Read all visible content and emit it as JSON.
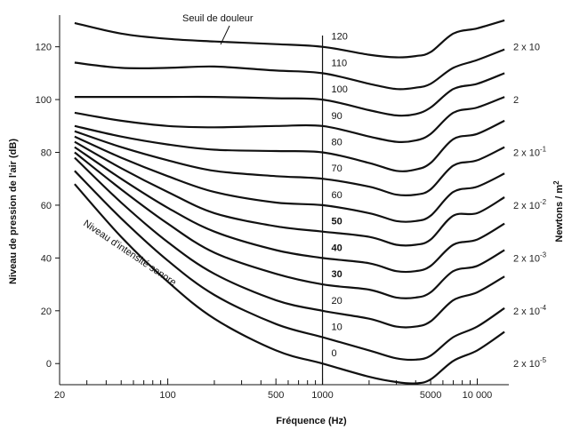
{
  "chart_data": {
    "type": "line",
    "title": "",
    "xlabel": "Fréquence (Hz)",
    "ylabel": "Niveau de pression de l'air (dB)",
    "ylabel_right": "Newtons / m²",
    "x_scale": "log",
    "xlim": [
      20,
      16000
    ],
    "ylim": [
      -8,
      132
    ],
    "x_ticks": [
      {
        "value": 20,
        "label": "20"
      },
      {
        "value": 100,
        "label": "100"
      },
      {
        "value": 500,
        "label": "500"
      },
      {
        "value": 1000,
        "label": "1000"
      },
      {
        "value": 5000,
        "label": "5000"
      },
      {
        "value": 10000,
        "label": "10 000"
      }
    ],
    "x_minor_ticks": [
      30,
      40,
      50,
      60,
      70,
      80,
      90,
      200,
      300,
      400,
      600,
      700,
      800,
      900,
      2000,
      3000,
      4000,
      6000,
      7000,
      8000,
      9000
    ],
    "y_ticks": [
      0,
      20,
      40,
      60,
      80,
      100,
      120
    ],
    "reference_line_x": 1000,
    "right_axis": [
      {
        "y": 120,
        "base": "2 x 10",
        "exp": ""
      },
      {
        "y": 100,
        "base": "2",
        "exp": ""
      },
      {
        "y": 80,
        "base": "2 x 10",
        "exp": "-1"
      },
      {
        "y": 60,
        "base": "2 x 10",
        "exp": "-2"
      },
      {
        "y": 40,
        "base": "2 x 10",
        "exp": "-3"
      },
      {
        "y": 20,
        "base": "2 x 10",
        "exp": "-4"
      },
      {
        "y": 0,
        "base": "2 x 10",
        "exp": "-5"
      }
    ],
    "annotations": {
      "pain_threshold": "Seuil de douleur",
      "intensity_level": "Niveau d'intensité sonore"
    },
    "series": [
      {
        "label": "120",
        "bold": false,
        "points": [
          [
            25,
            129
          ],
          [
            50,
            125
          ],
          [
            100,
            123
          ],
          [
            200,
            122
          ],
          [
            500,
            121
          ],
          [
            1000,
            120
          ],
          [
            2000,
            117
          ],
          [
            3000,
            116
          ],
          [
            4000,
            116.5
          ],
          [
            5000,
            118
          ],
          [
            7000,
            125
          ],
          [
            10000,
            127
          ],
          [
            15000,
            130
          ]
        ]
      },
      {
        "label": "110",
        "bold": false,
        "points": [
          [
            25,
            114
          ],
          [
            50,
            112
          ],
          [
            100,
            112
          ],
          [
            200,
            112.5
          ],
          [
            500,
            111
          ],
          [
            1000,
            110
          ],
          [
            2000,
            106
          ],
          [
            3000,
            104
          ],
          [
            4000,
            104.5
          ],
          [
            5000,
            106
          ],
          [
            7000,
            112
          ],
          [
            10000,
            115
          ],
          [
            15000,
            119
          ]
        ]
      },
      {
        "label": "100",
        "bold": false,
        "points": [
          [
            25,
            101
          ],
          [
            50,
            101
          ],
          [
            100,
            101
          ],
          [
            200,
            101
          ],
          [
            500,
            100.5
          ],
          [
            1000,
            100
          ],
          [
            2000,
            96
          ],
          [
            3000,
            94
          ],
          [
            4000,
            94.5
          ],
          [
            5000,
            97
          ],
          [
            7000,
            104
          ],
          [
            10000,
            106
          ],
          [
            15000,
            110
          ]
        ]
      },
      {
        "label": "90",
        "bold": false,
        "points": [
          [
            25,
            95
          ],
          [
            50,
            92
          ],
          [
            100,
            90
          ],
          [
            200,
            89.5
          ],
          [
            500,
            90
          ],
          [
            1000,
            90
          ],
          [
            2000,
            86
          ],
          [
            3000,
            84
          ],
          [
            4000,
            84.5
          ],
          [
            5000,
            87
          ],
          [
            7000,
            95
          ],
          [
            10000,
            97
          ],
          [
            15000,
            101
          ]
        ]
      },
      {
        "label": "80",
        "bold": false,
        "points": [
          [
            25,
            90
          ],
          [
            50,
            86
          ],
          [
            100,
            83
          ],
          [
            200,
            81
          ],
          [
            500,
            80.5
          ],
          [
            1000,
            80
          ],
          [
            2000,
            76
          ],
          [
            3000,
            73
          ],
          [
            4000,
            73.5
          ],
          [
            5000,
            76
          ],
          [
            7000,
            85
          ],
          [
            10000,
            87
          ],
          [
            15000,
            92
          ]
        ]
      },
      {
        "label": "70",
        "bold": false,
        "points": [
          [
            25,
            88
          ],
          [
            50,
            82
          ],
          [
            100,
            77
          ],
          [
            200,
            73
          ],
          [
            500,
            71
          ],
          [
            1000,
            70
          ],
          [
            2000,
            67
          ],
          [
            3000,
            64
          ],
          [
            4000,
            64
          ],
          [
            5000,
            66
          ],
          [
            7000,
            75
          ],
          [
            10000,
            77
          ],
          [
            15000,
            82
          ]
        ]
      },
      {
        "label": "60",
        "bold": false,
        "points": [
          [
            25,
            86
          ],
          [
            50,
            78
          ],
          [
            100,
            71
          ],
          [
            200,
            65
          ],
          [
            500,
            61
          ],
          [
            1000,
            60
          ],
          [
            2000,
            57
          ],
          [
            3000,
            54
          ],
          [
            4000,
            54
          ],
          [
            5000,
            56
          ],
          [
            7000,
            65
          ],
          [
            10000,
            67
          ],
          [
            15000,
            72
          ]
        ]
      },
      {
        "label": "50",
        "bold": true,
        "points": [
          [
            25,
            84
          ],
          [
            50,
            74
          ],
          [
            100,
            65
          ],
          [
            200,
            57
          ],
          [
            500,
            52
          ],
          [
            1000,
            50
          ],
          [
            2000,
            48
          ],
          [
            3000,
            45
          ],
          [
            4000,
            45
          ],
          [
            5000,
            47
          ],
          [
            7000,
            56
          ],
          [
            10000,
            57
          ],
          [
            15000,
            63
          ]
        ]
      },
      {
        "label": "40",
        "bold": true,
        "points": [
          [
            25,
            82
          ],
          [
            50,
            70
          ],
          [
            100,
            59
          ],
          [
            200,
            50
          ],
          [
            500,
            43
          ],
          [
            1000,
            40
          ],
          [
            2000,
            38
          ],
          [
            3000,
            35
          ],
          [
            4000,
            35
          ],
          [
            5000,
            37
          ],
          [
            7000,
            45
          ],
          [
            10000,
            47
          ],
          [
            15000,
            53
          ]
        ]
      },
      {
        "label": "30",
        "bold": true,
        "points": [
          [
            25,
            80
          ],
          [
            50,
            66
          ],
          [
            100,
            53
          ],
          [
            200,
            42
          ],
          [
            500,
            34
          ],
          [
            1000,
            30
          ],
          [
            2000,
            28
          ],
          [
            3000,
            25
          ],
          [
            4000,
            25
          ],
          [
            5000,
            27
          ],
          [
            7000,
            35
          ],
          [
            10000,
            37
          ],
          [
            15000,
            43
          ]
        ]
      },
      {
        "label": "20",
        "bold": false,
        "points": [
          [
            25,
            78
          ],
          [
            50,
            61
          ],
          [
            100,
            46
          ],
          [
            200,
            34
          ],
          [
            500,
            24
          ],
          [
            1000,
            20
          ],
          [
            2000,
            17
          ],
          [
            3000,
            14
          ],
          [
            4000,
            14
          ],
          [
            5000,
            16
          ],
          [
            7000,
            24
          ],
          [
            10000,
            27
          ],
          [
            15000,
            33
          ]
        ]
      },
      {
        "label": "10",
        "bold": false,
        "points": [
          [
            25,
            73
          ],
          [
            50,
            55
          ],
          [
            100,
            39
          ],
          [
            200,
            26
          ],
          [
            500,
            15
          ],
          [
            1000,
            10
          ],
          [
            2000,
            5
          ],
          [
            3000,
            2
          ],
          [
            4000,
            1.5
          ],
          [
            5000,
            3
          ],
          [
            7000,
            10
          ],
          [
            10000,
            14
          ],
          [
            15000,
            21
          ]
        ]
      },
      {
        "label": "0",
        "bold": false,
        "points": [
          [
            25,
            68
          ],
          [
            50,
            48
          ],
          [
            100,
            31
          ],
          [
            200,
            17
          ],
          [
            500,
            5
          ],
          [
            1000,
            0
          ],
          [
            2000,
            -5
          ],
          [
            3000,
            -7
          ],
          [
            4000,
            -7.5
          ],
          [
            5000,
            -6
          ],
          [
            7000,
            1
          ],
          [
            10000,
            5
          ],
          [
            15000,
            12
          ]
        ]
      }
    ]
  }
}
